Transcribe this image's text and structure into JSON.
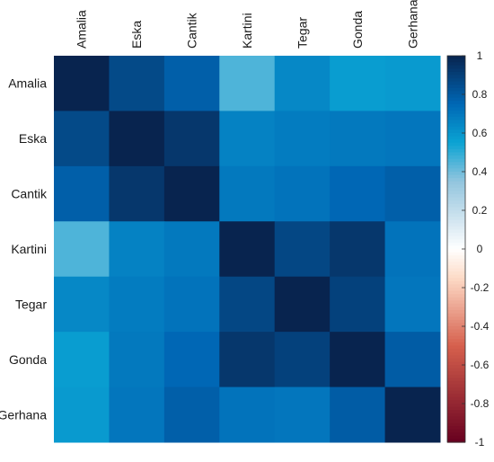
{
  "chart_data": {
    "type": "heatmap",
    "title": "",
    "variables": [
      "Amalia",
      "Eska",
      "Cantik",
      "Kartini",
      "Tegar",
      "Gonda",
      "Gerhana"
    ],
    "matrix": [
      [
        1.0,
        0.86,
        0.78,
        0.45,
        0.64,
        0.57,
        0.58
      ],
      [
        0.86,
        1.0,
        0.93,
        0.66,
        0.68,
        0.69,
        0.7
      ],
      [
        0.78,
        0.93,
        1.0,
        0.69,
        0.71,
        0.75,
        0.78
      ],
      [
        0.45,
        0.66,
        0.69,
        1.0,
        0.87,
        0.93,
        0.71
      ],
      [
        0.64,
        0.68,
        0.71,
        0.87,
        1.0,
        0.89,
        0.7
      ],
      [
        0.57,
        0.69,
        0.75,
        0.93,
        0.89,
        1.0,
        0.79
      ],
      [
        0.58,
        0.7,
        0.78,
        0.71,
        0.7,
        0.79,
        1.0
      ]
    ],
    "colorbar": {
      "range": [
        -1,
        1
      ],
      "ticks": [
        "1",
        "0.8",
        "0.6",
        "0.4",
        "0.2",
        "0",
        "-0.2",
        "-0.4",
        "-0.6",
        "-0.8",
        "-1"
      ]
    },
    "colors": {
      "neg_strong": "#67001f",
      "neg_mid": "#d6604d",
      "neg_light": "#fddbc7",
      "zero": "#ffffff",
      "pos_light": "#d1e5f0",
      "pos_low": "#92c5de",
      "pos_mid": "#0aa3d3",
      "pos_high": "#0067b5",
      "pos_strong": "#08244f"
    }
  }
}
